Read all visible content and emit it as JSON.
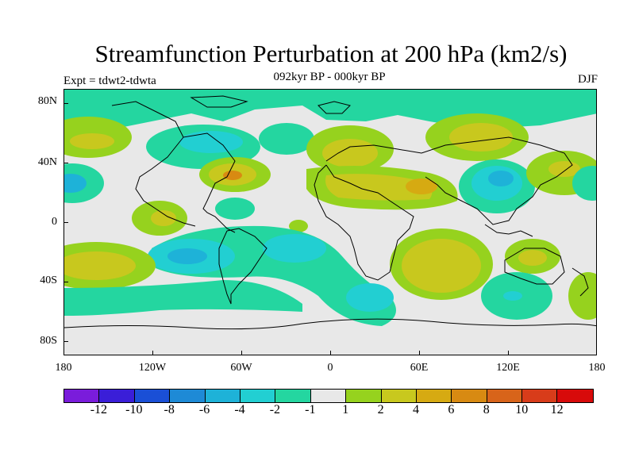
{
  "title": "Streamfunction Perturbation at 200 hPa (km2/s)",
  "subtitle": "092kyr BP - 000kyr BP",
  "left_label": "Expt = tdwt2-tdwta",
  "right_label": "DJF",
  "lat_labels": [
    "80N",
    "40N",
    "0",
    "40S",
    "80S"
  ],
  "lon_labels": [
    "180",
    "120W",
    "60W",
    "0",
    "60E",
    "120E",
    "180"
  ],
  "colorbar": {
    "colors": [
      "#7a1cdb",
      "#3a1ed8",
      "#1a4fd6",
      "#1e8ad6",
      "#1eb2d8",
      "#22cfd2",
      "#24d6a0",
      "#e8e8e8",
      "#96d21e",
      "#c8c81e",
      "#d6aa12",
      "#d88a12",
      "#d8641a",
      "#d83c1a",
      "#d80a0a"
    ],
    "labels": [
      "-12",
      "-10",
      "-8",
      "-6",
      "-4",
      "-2",
      "-1",
      "1",
      "2",
      "4",
      "6",
      "8",
      "10",
      "12"
    ]
  },
  "map": {
    "colors": {
      "background": "#e8e8e8",
      "green": "#24d6a0",
      "cyan": "#1eb2d8",
      "lightcyan": "#22cfd2",
      "lime": "#96d21e",
      "yellow": "#c8c81e",
      "orange": "#d6aa12",
      "darkorange": "#d88a12"
    }
  }
}
